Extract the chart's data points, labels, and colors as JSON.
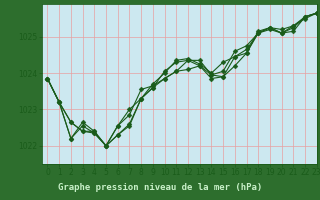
{
  "xlabel": "Graphe pression niveau de la mer (hPa)",
  "xlim": [
    -0.5,
    23
  ],
  "ylim": [
    1021.5,
    1025.9
  ],
  "yticks": [
    1022,
    1023,
    1024,
    1025
  ],
  "xticks": [
    0,
    1,
    2,
    3,
    4,
    5,
    6,
    7,
    8,
    9,
    10,
    11,
    12,
    13,
    14,
    15,
    16,
    17,
    18,
    19,
    20,
    21,
    22,
    23
  ],
  "plot_bg_color": "#cce8f0",
  "fig_bg_color": "#2d6e2d",
  "grid_color": "#e8a0a0",
  "line_color": "#1a5c1a",
  "marker_color": "#1a5c1a",
  "label_bg_color": "#2d6e2d",
  "label_text_color": "#c8f0c8",
  "series": [
    [
      1023.85,
      1023.2,
      1022.2,
      1022.65,
      1022.4,
      1022.0,
      1022.3,
      1022.6,
      1023.3,
      1023.6,
      1023.85,
      1024.05,
      1024.1,
      1024.2,
      1023.85,
      1023.9,
      1024.2,
      1024.55,
      1025.1,
      1025.2,
      1025.1,
      1025.3,
      1025.55,
      1025.65
    ],
    [
      1023.85,
      1023.2,
      1022.65,
      1022.4,
      1022.4,
      1022.0,
      1022.3,
      1022.55,
      1023.3,
      1023.6,
      1024.05,
      1024.3,
      1024.35,
      1024.2,
      1023.95,
      1023.9,
      1024.45,
      1024.55,
      1025.15,
      1025.25,
      1025.1,
      1025.15,
      1025.55,
      1025.65
    ],
    [
      1023.85,
      1023.2,
      1022.2,
      1022.55,
      1022.35,
      1022.0,
      1022.55,
      1023.0,
      1023.3,
      1023.7,
      1024.0,
      1024.35,
      1024.4,
      1024.25,
      1024.0,
      1024.3,
      1024.45,
      1024.65,
      1025.1,
      1025.25,
      1025.1,
      1025.25,
      1025.55,
      1025.65
    ],
    [
      1023.85,
      1023.2,
      1022.65,
      1022.4,
      1022.35,
      1022.0,
      1022.55,
      1022.85,
      1023.55,
      1023.65,
      1023.85,
      1024.05,
      1024.35,
      1024.35,
      1023.95,
      1024.05,
      1024.6,
      1024.75,
      1025.1,
      1025.25,
      1025.2,
      1025.3,
      1025.5,
      1025.65
    ]
  ],
  "tick_fontsize": 5.5,
  "marker_size": 2.5,
  "line_width": 0.8,
  "xlabel_fontsize": 6.5
}
